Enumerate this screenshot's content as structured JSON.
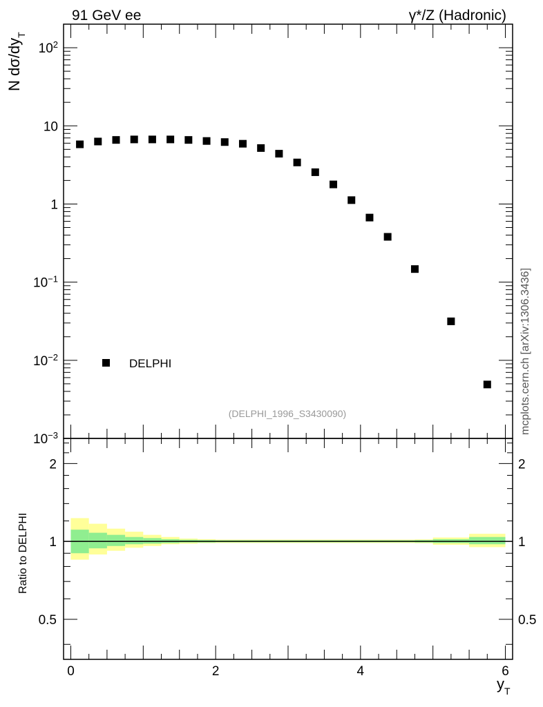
{
  "header": {
    "left": "91 GeV ee",
    "right": "γ*/Z (Hadronic)"
  },
  "watermark": "mcplots.cern.ch [arXiv:1306.3436]",
  "analysis_tag": "(DELPHI_1996_S3430090)",
  "legend": {
    "label": "DELPHI"
  },
  "colors": {
    "marker": "#000000",
    "band_inner": "#90ee90",
    "band_outer": "#ffff99",
    "axis": "#000000",
    "tag_text": "#999999",
    "watermark_text": "#555555"
  },
  "chart_data": [
    {
      "type": "scatter",
      "panel": "main",
      "ylabel": "N dσ/dy_T",
      "yscale": "log",
      "ylim": [
        0.001,
        200
      ],
      "xlim": [
        -0.1,
        6.1
      ],
      "ytick_labels": [
        {
          "value": 0.001,
          "base": "10",
          "exp": "−3"
        },
        {
          "value": 0.01,
          "base": "10",
          "exp": "−2"
        },
        {
          "value": 0.1,
          "base": "10",
          "exp": "−1"
        },
        {
          "value": 1,
          "base": "1",
          "exp": ""
        },
        {
          "value": 10,
          "base": "10",
          "exp": ""
        },
        {
          "value": 100,
          "base": "10",
          "exp": "2"
        }
      ],
      "series": [
        {
          "name": "DELPHI",
          "x": [
            0.125,
            0.375,
            0.625,
            0.875,
            1.125,
            1.375,
            1.625,
            1.875,
            2.125,
            2.375,
            2.625,
            2.875,
            3.125,
            3.375,
            3.625,
            3.875,
            4.125,
            4.375,
            4.75,
            5.25,
            5.75
          ],
          "y": [
            5.8,
            6.3,
            6.6,
            6.7,
            6.7,
            6.7,
            6.6,
            6.4,
            6.2,
            5.9,
            5.2,
            4.4,
            3.4,
            2.55,
            1.78,
            1.12,
            0.67,
            0.38,
            0.147,
            0.0315,
            0.0049
          ]
        }
      ]
    },
    {
      "type": "area",
      "panel": "ratio",
      "ylabel": "Ratio to DELPHI",
      "xlabel": "y_T",
      "yscale": "log",
      "ylim": [
        0.35,
        2.5
      ],
      "xlim": [
        -0.1,
        6.1
      ],
      "yticks": [
        0.5,
        1,
        2
      ],
      "ytick_labels": [
        "0.5",
        "1",
        "2"
      ],
      "xticks": [
        0,
        2,
        4,
        6
      ],
      "xtick_labels": [
        "0",
        "2",
        "4",
        "6"
      ],
      "bins": [
        {
          "lo": 0.0,
          "hi": 0.25,
          "inner": [
            0.9,
            1.11
          ],
          "outer": [
            0.85,
            1.23
          ]
        },
        {
          "lo": 0.25,
          "hi": 0.5,
          "inner": [
            0.94,
            1.08
          ],
          "outer": [
            0.89,
            1.17
          ]
        },
        {
          "lo": 0.5,
          "hi": 0.75,
          "inner": [
            0.96,
            1.06
          ],
          "outer": [
            0.92,
            1.12
          ]
        },
        {
          "lo": 0.75,
          "hi": 1.0,
          "inner": [
            0.975,
            1.04
          ],
          "outer": [
            0.945,
            1.09
          ]
        },
        {
          "lo": 1.0,
          "hi": 1.25,
          "inner": [
            0.98,
            1.03
          ],
          "outer": [
            0.96,
            1.06
          ]
        },
        {
          "lo": 1.25,
          "hi": 1.5,
          "inner": [
            0.985,
            1.02
          ],
          "outer": [
            0.975,
            1.04
          ]
        },
        {
          "lo": 1.5,
          "hi": 1.75,
          "inner": [
            0.99,
            1.015
          ],
          "outer": [
            0.98,
            1.025
          ]
        },
        {
          "lo": 1.75,
          "hi": 2.0,
          "inner": [
            0.99,
            1.012
          ],
          "outer": [
            0.985,
            1.02
          ]
        },
        {
          "lo": 2.0,
          "hi": 4.75,
          "inner": [
            0.992,
            1.01
          ],
          "outer": [
            0.986,
            1.016
          ]
        },
        {
          "lo": 4.75,
          "hi": 5.0,
          "inner": [
            0.99,
            1.012
          ],
          "outer": [
            0.984,
            1.018
          ]
        },
        {
          "lo": 5.0,
          "hi": 5.5,
          "inner": [
            0.985,
            1.02
          ],
          "outer": [
            0.97,
            1.035
          ]
        },
        {
          "lo": 5.5,
          "hi": 6.0,
          "inner": [
            0.975,
            1.04
          ],
          "outer": [
            0.95,
            1.07
          ]
        }
      ],
      "reference_line": 1
    }
  ]
}
